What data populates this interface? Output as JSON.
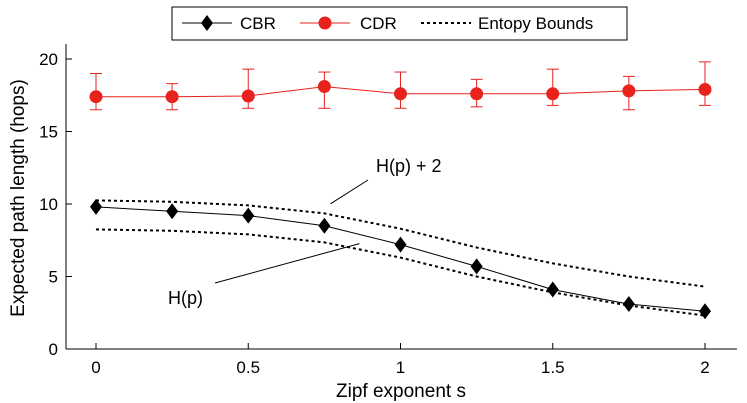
{
  "chart_data": {
    "type": "line",
    "title": "",
    "xlabel": "Zipf exponent s",
    "ylabel": "Expected path length (hops)",
    "xlim": [
      -0.2,
      2.1
    ],
    "ylim": [
      0,
      20
    ],
    "x_ticks": [
      0,
      0.5,
      1,
      1.5,
      2
    ],
    "x_tick_labels": [
      "0",
      "0.5",
      "1",
      "1.5",
      "2"
    ],
    "y_ticks": [
      0,
      5,
      10,
      15,
      20
    ],
    "y_tick_labels": [
      "0",
      "5",
      "10",
      "15",
      "20"
    ],
    "grid": false,
    "legend_position": "top",
    "series": [
      {
        "name": "CBR",
        "marker": "diamond",
        "color": "#000000",
        "line": "solid",
        "x": [
          0,
          0.25,
          0.5,
          0.75,
          1,
          1.25,
          1.5,
          1.75,
          2
        ],
        "values": [
          9.8,
          9.5,
          9.2,
          8.5,
          7.2,
          5.7,
          4.1,
          3.1,
          2.6
        ]
      },
      {
        "name": "CDR",
        "marker": "circle",
        "color": "#e8231e",
        "line": "solid",
        "x": [
          0,
          0.25,
          0.5,
          0.75,
          1,
          1.25,
          1.5,
          1.75,
          2
        ],
        "values": [
          17.4,
          17.4,
          17.45,
          18.1,
          17.6,
          17.6,
          17.6,
          17.8,
          17.9
        ],
        "err_low": [
          16.5,
          16.5,
          16.6,
          16.6,
          16.6,
          16.7,
          16.8,
          16.5,
          16.8
        ],
        "err_high": [
          19.0,
          18.3,
          19.3,
          19.1,
          19.1,
          18.6,
          19.3,
          18.8,
          19.8
        ]
      },
      {
        "name": "Entopy Bounds",
        "role": "H(p) + 2",
        "marker": "none",
        "color": "#000000",
        "line": "dashed",
        "x": [
          0,
          0.25,
          0.5,
          0.75,
          1,
          1.25,
          1.5,
          1.75,
          2
        ],
        "values": [
          10.25,
          10.15,
          9.9,
          9.35,
          8.3,
          7.0,
          5.9,
          5.0,
          4.3
        ]
      },
      {
        "name": "Entopy Bounds",
        "role": "H(p)",
        "marker": "none",
        "color": "#000000",
        "line": "dashed",
        "x": [
          0,
          0.25,
          0.5,
          0.75,
          1,
          1.25,
          1.5,
          1.75,
          2
        ],
        "values": [
          8.25,
          8.15,
          7.9,
          7.35,
          6.3,
          5.0,
          3.9,
          3.0,
          2.3
        ]
      }
    ],
    "legend": [
      "CBR",
      "CDR",
      "Entopy Bounds"
    ],
    "annotations": [
      {
        "text": "H(p) + 2",
        "points_to": {
          "x": 0.77,
          "y": 9.6
        }
      },
      {
        "text": "H(p)",
        "points_to": {
          "x": 0.55,
          "y": 7.2
        }
      }
    ]
  }
}
